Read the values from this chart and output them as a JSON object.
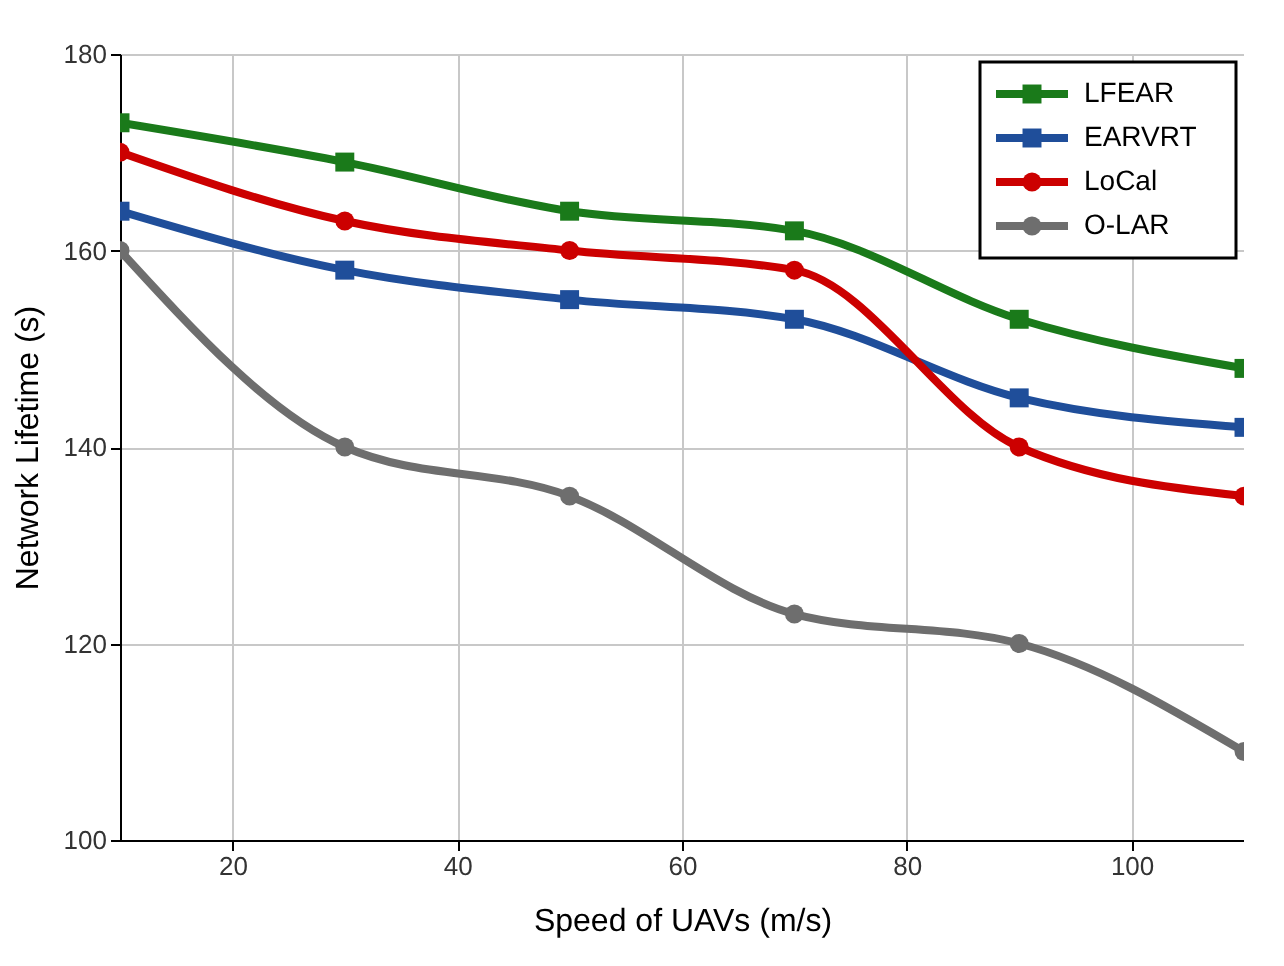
{
  "chart_data": {
    "type": "line",
    "xlabel": "Speed of UAVs (m/s)",
    "ylabel": "Network Lifetime (s)",
    "x": [
      10,
      30,
      50,
      70,
      90,
      110
    ],
    "series": [
      {
        "name": "LFEAR",
        "color": "#1a7a1a",
        "marker": "square",
        "values": [
          173,
          169,
          164,
          162,
          153,
          148
        ]
      },
      {
        "name": "EARVRT",
        "color": "#1f4e9a",
        "marker": "square",
        "values": [
          164,
          158,
          155,
          153,
          145,
          142
        ]
      },
      {
        "name": "LoCal",
        "color": "#cc0000",
        "marker": "circle",
        "values": [
          170,
          163,
          160,
          158,
          140,
          135
        ]
      },
      {
        "name": "O-LAR",
        "color": "#6e6e6e",
        "marker": "circle",
        "values": [
          160,
          140,
          135,
          123,
          120,
          109
        ]
      }
    ],
    "xlim": [
      10,
      110
    ],
    "xticks": [
      20,
      40,
      60,
      80,
      100
    ],
    "ylim": [
      100,
      180
    ],
    "yticks": [
      100,
      120,
      140,
      160,
      180
    ],
    "grid": true,
    "legend": "top right",
    "line_style": "solid"
  }
}
